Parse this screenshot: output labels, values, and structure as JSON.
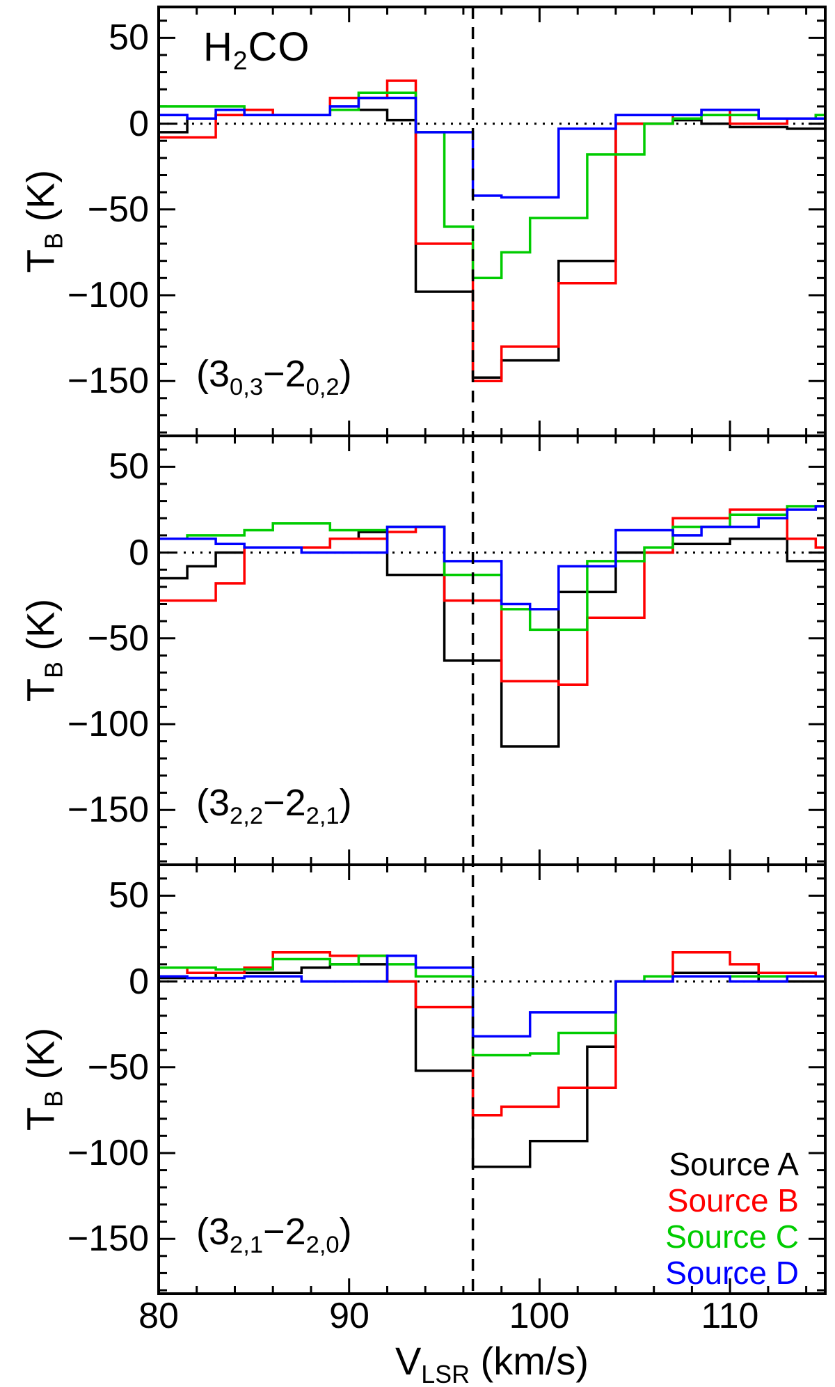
{
  "chart_data": {
    "type": "line",
    "style": "step-histogram",
    "title_parts": {
      "pre": "H",
      "sub": "2",
      "post": "CO"
    },
    "xlabel_parts": {
      "pre": "V",
      "sub": "LSR",
      "post": " (km/s)"
    },
    "ylabel_parts": {
      "pre": "T",
      "sub": "B",
      "post": " (K)"
    },
    "x_bin_start": 80,
    "x_bin_width": 1.5,
    "xlim": [
      80,
      115
    ],
    "ylim": [
      -182,
      68
    ],
    "x_ticks": [
      {
        "value": 80,
        "label": "80"
      },
      {
        "value": 90,
        "label": "90"
      },
      {
        "value": 100,
        "label": "100"
      },
      {
        "value": 110,
        "label": "110"
      }
    ],
    "x_minor_step": 2,
    "y_ticks": [
      {
        "value": 50,
        "label": "50"
      },
      {
        "value": 0,
        "label": "0"
      },
      {
        "value": -50,
        "label": "−50"
      },
      {
        "value": -100,
        "label": "−100"
      },
      {
        "value": -150,
        "label": "−150"
      }
    ],
    "y_minor_step": 10,
    "marker_velocity": 96.5,
    "zero_line": true,
    "panels": [
      {
        "label_parts": [
          "(3",
          "0,3",
          "−2",
          "0,2",
          ")"
        ],
        "series": [
          {
            "name": "Source A",
            "color": "#000000",
            "values": [
              -5,
              3,
              5,
              5,
              5,
              5,
              8,
              8,
              2,
              -98,
              -98,
              -148,
              -138,
              -138,
              -80,
              -80,
              0,
              0,
              2,
              0,
              -2,
              -2,
              -3,
              -3
            ]
          },
          {
            "name": "Source B",
            "color": "#ff0000",
            "values": [
              -8,
              -8,
              5,
              8,
              5,
              5,
              15,
              15,
              25,
              -70,
              -70,
              -150,
              -130,
              -130,
              -93,
              -93,
              0,
              0,
              5,
              8,
              0,
              0,
              3,
              5
            ]
          },
          {
            "name": "Source C",
            "color": "#00cc00",
            "values": [
              10,
              10,
              10,
              5,
              5,
              5,
              8,
              18,
              18,
              -5,
              -60,
              -90,
              -75,
              -55,
              -55,
              -18,
              -18,
              0,
              3,
              5,
              5,
              3,
              3,
              5
            ]
          },
          {
            "name": "Source D",
            "color": "#0000ff",
            "values": [
              5,
              3,
              8,
              5,
              5,
              5,
              10,
              15,
              15,
              -5,
              -5,
              -42,
              -43,
              -43,
              -3,
              -3,
              5,
              5,
              5,
              8,
              8,
              3,
              3,
              3
            ]
          }
        ]
      },
      {
        "label_parts": [
          "(3",
          "2,2",
          "−2",
          "2,1",
          ")"
        ],
        "series": [
          {
            "name": "Source A",
            "color": "#000000",
            "values": [
              -15,
              -8,
              0,
              3,
              3,
              3,
              8,
              12,
              -13,
              -13,
              -63,
              -63,
              -113,
              -113,
              -23,
              -23,
              0,
              0,
              5,
              5,
              8,
              8,
              -5,
              -5
            ]
          },
          {
            "name": "Source B",
            "color": "#ff0000",
            "values": [
              -28,
              -28,
              -18,
              3,
              3,
              3,
              8,
              8,
              12,
              15,
              -28,
              -28,
              -75,
              -75,
              -77,
              -38,
              -38,
              0,
              20,
              20,
              25,
              25,
              8,
              3
            ]
          },
          {
            "name": "Source C",
            "color": "#00cc00",
            "values": [
              8,
              10,
              10,
              13,
              17,
              17,
              13,
              13,
              15,
              15,
              -13,
              -13,
              -33,
              -45,
              -45,
              -5,
              -5,
              3,
              15,
              15,
              22,
              22,
              27,
              27
            ]
          },
          {
            "name": "Source D",
            "color": "#0000ff",
            "values": [
              8,
              8,
              5,
              3,
              3,
              0,
              0,
              0,
              15,
              15,
              -5,
              -5,
              -30,
              -33,
              -8,
              -8,
              13,
              13,
              10,
              15,
              15,
              20,
              25,
              27
            ]
          }
        ]
      },
      {
        "label_parts": [
          "(3",
          "2,1",
          "−2",
          "2,0",
          ")"
        ],
        "series": [
          {
            "name": "Source A",
            "color": "#000000",
            "values": [
              2,
              2,
              5,
              5,
              5,
              8,
              10,
              10,
              0,
              -52,
              -52,
              -108,
              -108,
              -93,
              -93,
              -38,
              0,
              0,
              5,
              5,
              5,
              0,
              0,
              0
            ]
          },
          {
            "name": "Source B",
            "color": "#ff0000",
            "values": [
              8,
              5,
              5,
              8,
              17,
              17,
              15,
              15,
              0,
              -15,
              -15,
              -78,
              -73,
              -73,
              -62,
              -62,
              0,
              0,
              17,
              17,
              10,
              5,
              5,
              3
            ]
          },
          {
            "name": "Source C",
            "color": "#00cc00",
            "values": [
              8,
              8,
              7,
              7,
              13,
              13,
              10,
              15,
              10,
              3,
              3,
              -43,
              -43,
              -42,
              -30,
              -30,
              0,
              3,
              3,
              3,
              3,
              3,
              3,
              3
            ]
          },
          {
            "name": "Source D",
            "color": "#0000ff",
            "values": [
              3,
              2,
              2,
              3,
              3,
              0,
              0,
              0,
              15,
              8,
              8,
              -32,
              -32,
              -18,
              -18,
              -18,
              0,
              0,
              3,
              3,
              0,
              0,
              3,
              3
            ]
          }
        ]
      }
    ],
    "legend": {
      "position": "bottom-right-panel-3",
      "items": [
        {
          "label": "Source A",
          "color": "#000000"
        },
        {
          "label": "Source B",
          "color": "#ff0000"
        },
        {
          "label": "Source C",
          "color": "#00cc00"
        },
        {
          "label": "Source D",
          "color": "#0000ff"
        }
      ]
    }
  }
}
